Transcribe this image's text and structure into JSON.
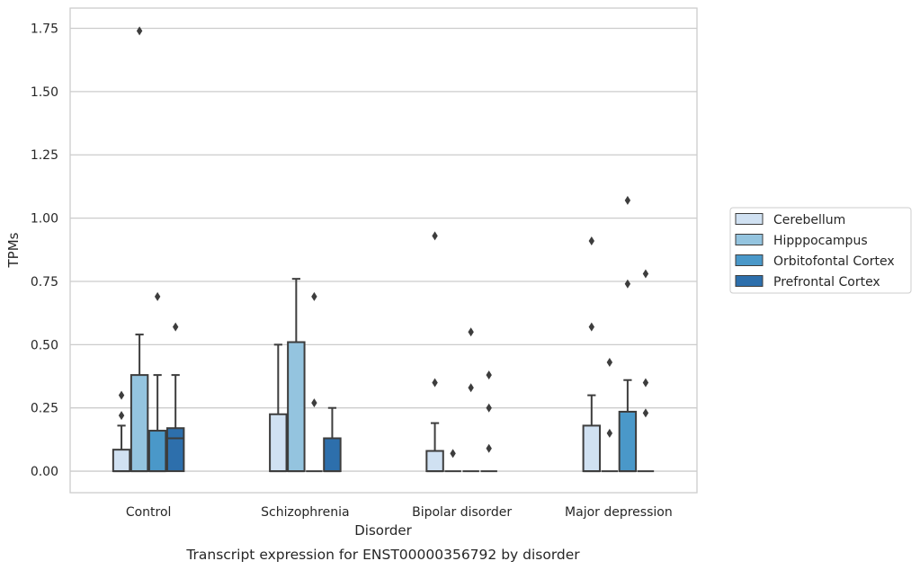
{
  "chart_data": {
    "type": "box",
    "caption": "Transcript expression for ENST00000356792 by disorder",
    "xlabel": "Disorder",
    "ylabel": "TPMs",
    "ylim": [
      -0.085,
      1.83
    ],
    "yticks": [
      0.0,
      0.25,
      0.5,
      0.75,
      1.0,
      1.25,
      1.5,
      1.75
    ],
    "ytick_labels": [
      "0.00",
      "0.25",
      "0.50",
      "0.75",
      "1.00",
      "1.25",
      "1.50",
      "1.75"
    ],
    "categories": [
      "Control",
      "Schizophrenia",
      "Bipolar disorder",
      "Major depression"
    ],
    "grid": "horizontal",
    "legend_position": "right",
    "series": [
      {
        "name": "Cerebellum",
        "color": "#d0e1f2",
        "boxes": [
          {
            "q1": 0.0,
            "median": 0.0,
            "q3": 0.085,
            "whisker_low": 0.0,
            "whisker_high": 0.18,
            "outliers": [
              0.22,
              0.3
            ]
          },
          {
            "q1": 0.0,
            "median": 0.0,
            "q3": 0.225,
            "whisker_low": 0.0,
            "whisker_high": 0.5,
            "outliers": []
          },
          {
            "q1": 0.0,
            "median": 0.0,
            "q3": 0.08,
            "whisker_low": 0.0,
            "whisker_high": 0.19,
            "outliers": [
              0.35,
              0.93
            ]
          },
          {
            "q1": 0.0,
            "median": 0.0,
            "q3": 0.18,
            "whisker_low": 0.0,
            "whisker_high": 0.3,
            "outliers": [
              0.57,
              0.91
            ]
          }
        ]
      },
      {
        "name": "Hipppocampus",
        "color": "#94c4df",
        "boxes": [
          {
            "q1": 0.0,
            "median": 0.0,
            "q3": 0.38,
            "whisker_low": 0.0,
            "whisker_high": 0.54,
            "outliers": [
              1.74
            ]
          },
          {
            "q1": 0.0,
            "median": 0.0,
            "q3": 0.51,
            "whisker_low": 0.0,
            "whisker_high": 0.76,
            "outliers": []
          },
          {
            "q1": 0.0,
            "median": 0.0,
            "q3": 0.0,
            "whisker_low": 0.0,
            "whisker_high": 0.0,
            "outliers": [
              0.07
            ]
          },
          {
            "q1": 0.0,
            "median": 0.0,
            "q3": 0.0,
            "whisker_low": 0.0,
            "whisker_high": 0.0,
            "outliers": [
              0.15,
              0.43
            ]
          }
        ]
      },
      {
        "name": "Orbitofontal Cortex",
        "color": "#4a98c9",
        "boxes": [
          {
            "q1": 0.0,
            "median": 0.0,
            "q3": 0.16,
            "whisker_low": 0.0,
            "whisker_high": 0.38,
            "outliers": [
              0.69
            ]
          },
          {
            "q1": 0.0,
            "median": 0.0,
            "q3": 0.0,
            "whisker_low": 0.0,
            "whisker_high": 0.0,
            "outliers": [
              0.27,
              0.69
            ]
          },
          {
            "q1": 0.0,
            "median": 0.0,
            "q3": 0.0,
            "whisker_low": 0.0,
            "whisker_high": 0.0,
            "outliers": [
              0.33,
              0.55
            ]
          },
          {
            "q1": 0.0,
            "median": 0.0,
            "q3": 0.235,
            "whisker_low": 0.0,
            "whisker_high": 0.36,
            "outliers": [
              0.74,
              1.07
            ]
          }
        ]
      },
      {
        "name": "Prefrontal Cortex",
        "color": "#2d6fac",
        "boxes": [
          {
            "q1": 0.0,
            "median": 0.13,
            "q3": 0.17,
            "whisker_low": 0.0,
            "whisker_high": 0.38,
            "outliers": [
              0.57
            ]
          },
          {
            "q1": 0.0,
            "median": 0.0,
            "q3": 0.13,
            "whisker_low": 0.0,
            "whisker_high": 0.25,
            "outliers": []
          },
          {
            "q1": 0.0,
            "median": 0.0,
            "q3": 0.0,
            "whisker_low": 0.0,
            "whisker_high": 0.0,
            "outliers": [
              0.09,
              0.25,
              0.38
            ]
          },
          {
            "q1": 0.0,
            "median": 0.0,
            "q3": 0.0,
            "whisker_low": 0.0,
            "whisker_high": 0.0,
            "outliers": [
              0.23,
              0.35,
              0.78
            ]
          }
        ]
      }
    ]
  }
}
